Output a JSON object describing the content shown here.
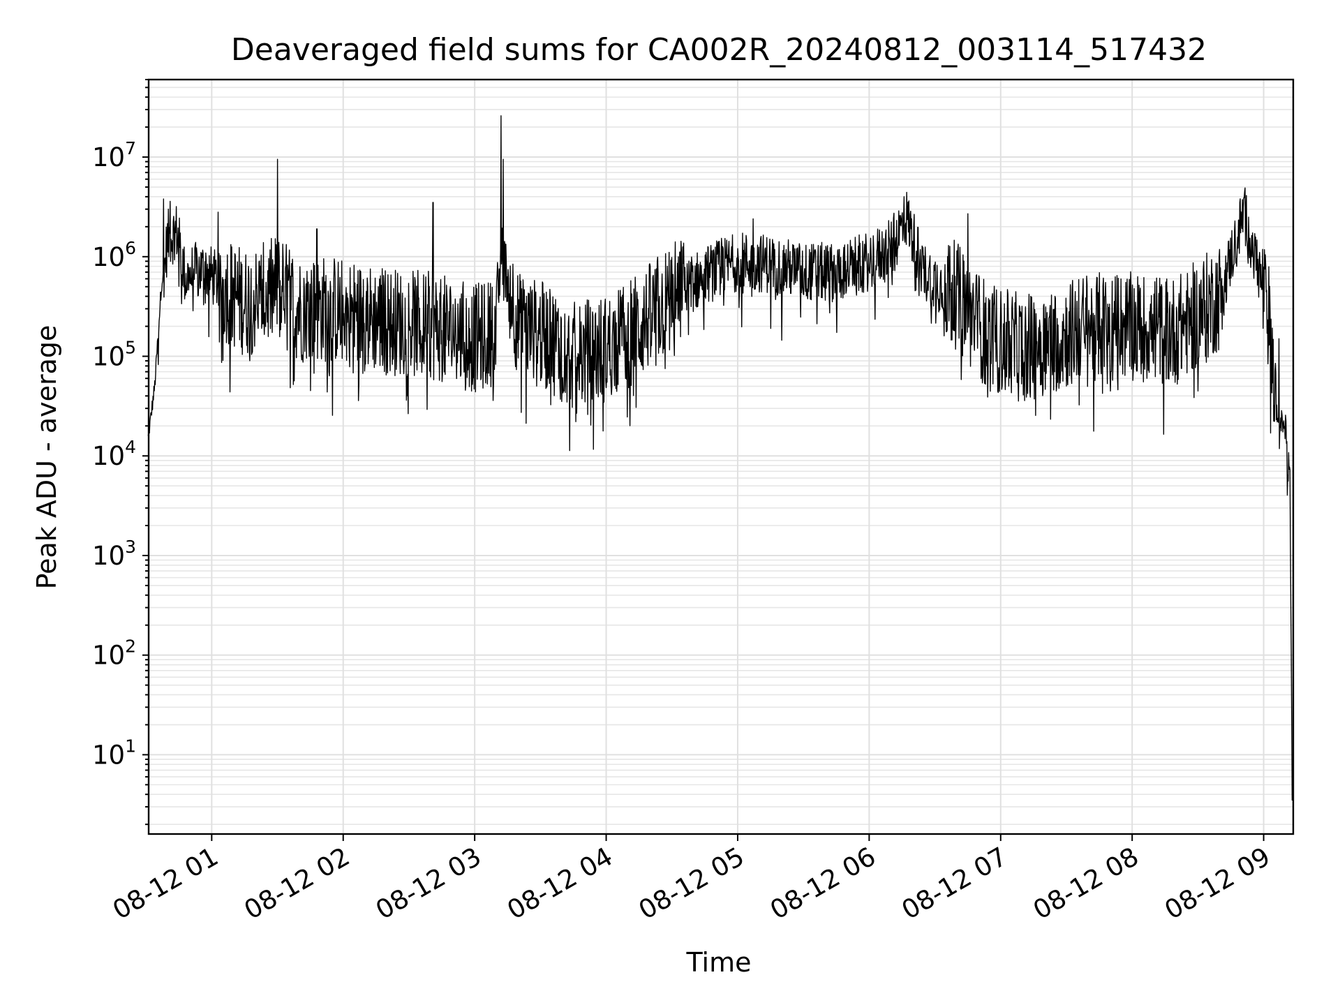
{
  "chart_data": {
    "type": "line",
    "title": "Deaveraged field sums for CA002R_20240812_003114_517432",
    "xlabel": "Time",
    "ylabel": "Peak ADU - average",
    "yscale": "log",
    "ylim": [
      1.6,
      60000000
    ],
    "xlim": [
      "2024-08-12 00:31:14",
      "2024-08-12 09:13:30"
    ],
    "grid": "on (major and minor)",
    "line_color": "#000000",
    "x_ticks": [
      {
        "value": "2024-08-12 01:00",
        "label": "08-12 01"
      },
      {
        "value": "2024-08-12 02:00",
        "label": "08-12 02"
      },
      {
        "value": "2024-08-12 03:00",
        "label": "08-12 03"
      },
      {
        "value": "2024-08-12 04:00",
        "label": "08-12 04"
      },
      {
        "value": "2024-08-12 05:00",
        "label": "08-12 05"
      },
      {
        "value": "2024-08-12 06:00",
        "label": "08-12 06"
      },
      {
        "value": "2024-08-12 07:00",
        "label": "08-12 07"
      },
      {
        "value": "2024-08-12 08:00",
        "label": "08-12 08"
      },
      {
        "value": "2024-08-12 09:00",
        "label": "08-12 09"
      }
    ],
    "y_ticks": [
      {
        "value": 10,
        "base": "10",
        "exp": "1"
      },
      {
        "value": 100,
        "base": "10",
        "exp": "2"
      },
      {
        "value": 1000,
        "base": "10",
        "exp": "3"
      },
      {
        "value": 10000,
        "base": "10",
        "exp": "4"
      },
      {
        "value": 100000,
        "base": "10",
        "exp": "5"
      },
      {
        "value": 1000000,
        "base": "10",
        "exp": "6"
      },
      {
        "value": 10000000,
        "base": "10",
        "exp": "7"
      }
    ],
    "series": [
      {
        "x": [
          "2024-08-12 00:31",
          "2024-08-12 00:34",
          "2024-08-12 00:37",
          "2024-08-12 00:40",
          "2024-08-12 00:44",
          "2024-08-12 00:48",
          "2024-08-12 00:52",
          "2024-08-12 00:57",
          "2024-08-12 01:05",
          "2024-08-12 01:15",
          "2024-08-12 01:25",
          "2024-08-12 01:30",
          "2024-08-12 01:40",
          "2024-08-12 01:55",
          "2024-08-12 02:10",
          "2024-08-12 02:25",
          "2024-08-12 02:40",
          "2024-08-12 02:50",
          "2024-08-12 03:00",
          "2024-08-12 03:10",
          "2024-08-12 03:12",
          "2024-08-12 03:20",
          "2024-08-12 03:35",
          "2024-08-12 03:45",
          "2024-08-12 04:00",
          "2024-08-12 04:15",
          "2024-08-12 04:30",
          "2024-08-12 04:45",
          "2024-08-12 05:00",
          "2024-08-12 05:15",
          "2024-08-12 05:30",
          "2024-08-12 05:45",
          "2024-08-12 06:00",
          "2024-08-12 06:10",
          "2024-08-12 06:17",
          "2024-08-12 06:25",
          "2024-08-12 06:40",
          "2024-08-12 06:55",
          "2024-08-12 07:10",
          "2024-08-12 07:25",
          "2024-08-12 07:40",
          "2024-08-12 08:00",
          "2024-08-12 08:20",
          "2024-08-12 08:40",
          "2024-08-12 08:51",
          "2024-08-12 08:58",
          "2024-08-12 09:03",
          "2024-08-12 09:06",
          "2024-08-12 09:10",
          "2024-08-12 09:12",
          "2024-08-12 09:13"
        ],
        "y": [
          15000,
          50000,
          500000,
          1500000,
          1800000,
          600000,
          700000,
          750000,
          500000,
          350000,
          400000,
          500000,
          300000,
          300000,
          250000,
          220000,
          200000,
          180000,
          150000,
          180000,
          1200000,
          200000,
          150000,
          100000,
          120000,
          200000,
          400000,
          650000,
          900000,
          850000,
          700000,
          700000,
          900000,
          1200000,
          2500000,
          700000,
          400000,
          150000,
          120000,
          150000,
          200000,
          200000,
          180000,
          400000,
          2800000,
          700000,
          200000,
          25000,
          20000,
          8000,
          4
        ]
      }
    ],
    "spikes": [
      {
        "x": "2024-08-12 00:38",
        "y": 3800000
      },
      {
        "x": "2024-08-12 00:41",
        "y": 3600000
      },
      {
        "x": "2024-08-12 01:03",
        "y": 2800000
      },
      {
        "x": "2024-08-12 01:30",
        "y": 9500000
      },
      {
        "x": "2024-08-12 01:48",
        "y": 1900000
      },
      {
        "x": "2024-08-12 02:41",
        "y": 3500000
      },
      {
        "x": "2024-08-12 03:12",
        "y": 26000000
      },
      {
        "x": "2024-08-12 03:13",
        "y": 9500000
      },
      {
        "x": "2024-08-12 05:07",
        "y": 2400000
      },
      {
        "x": "2024-08-12 06:16",
        "y": 4000000
      },
      {
        "x": "2024-08-12 06:45",
        "y": 2700000
      },
      {
        "x": "2024-08-12 08:51",
        "y": 3900000
      },
      {
        "x": "2024-08-12 09:07",
        "y": 150000
      }
    ]
  }
}
